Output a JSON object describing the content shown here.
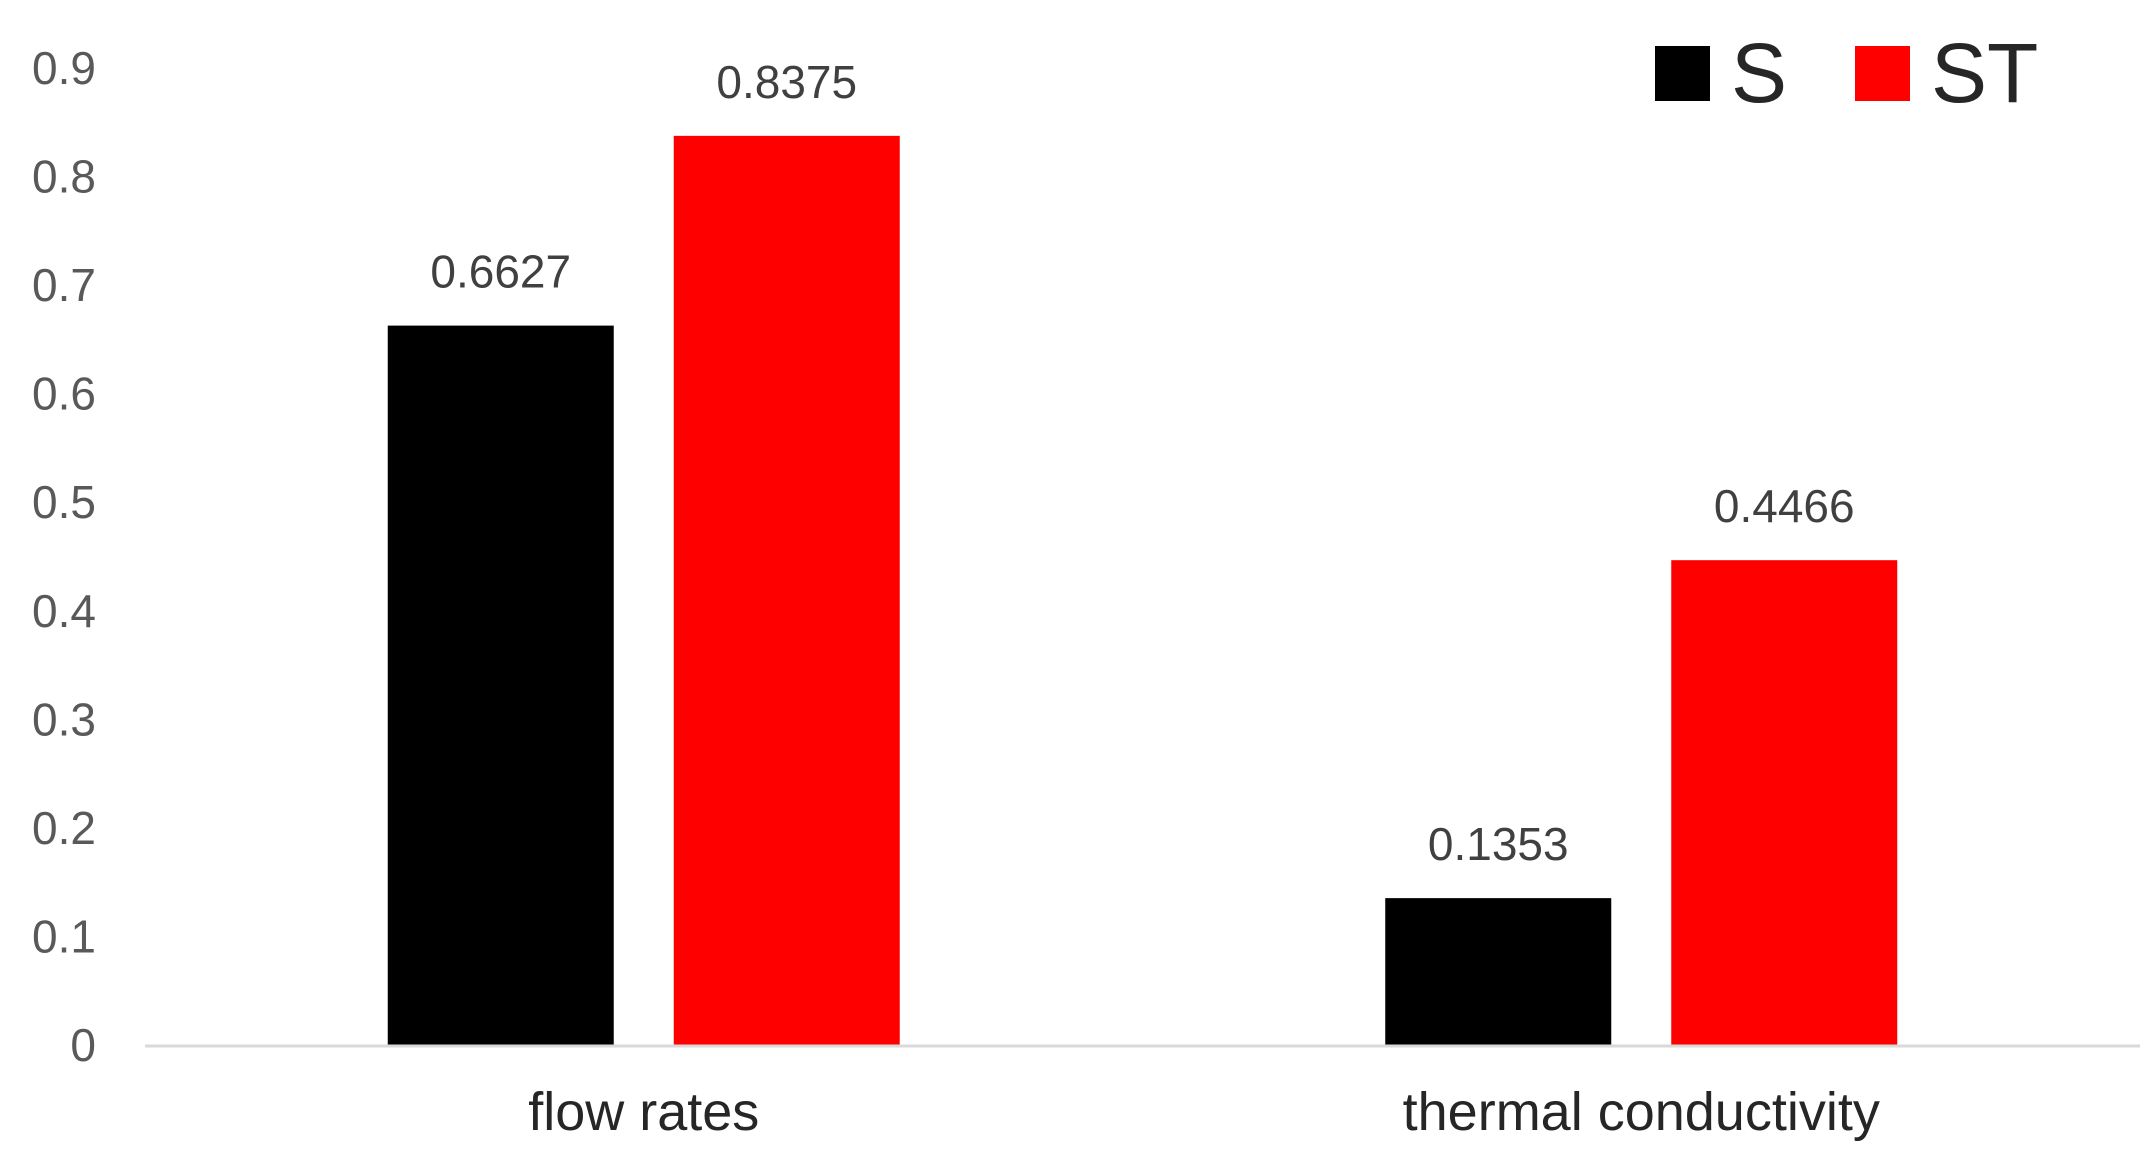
{
  "chart_data": {
    "type": "bar",
    "title": "",
    "xlabel": "",
    "ylabel": "",
    "categories": [
      "flow rates",
      "thermal conductivity"
    ],
    "series": [
      {
        "name": "S",
        "color": "#000000",
        "values": [
          0.6627,
          0.1353
        ],
        "labels": [
          "0.6627",
          "0.1353"
        ]
      },
      {
        "name": "ST",
        "color": "#ff0000",
        "values": [
          0.8375,
          0.4466
        ],
        "labels": [
          "0.8375",
          "0.4466"
        ]
      }
    ],
    "ylim": [
      0,
      0.9
    ],
    "yticks": [
      0,
      0.1,
      0.2,
      0.3,
      0.4,
      0.5,
      0.6,
      0.7,
      0.8,
      0.9
    ],
    "ytick_labels": [
      "0",
      "0.1",
      "0.2",
      "0.3",
      "0.4",
      "0.5",
      "0.6",
      "0.7",
      "0.8",
      "0.9"
    ],
    "grid": false,
    "legend": "top-right",
    "axis_color": "#d9d9d9"
  }
}
